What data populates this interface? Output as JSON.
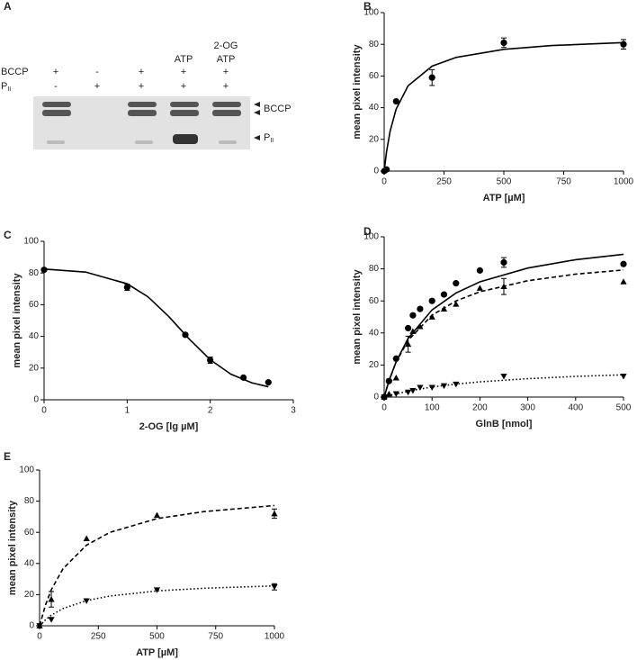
{
  "gel": {
    "label": "A",
    "header_lines": [
      [
        "ATP"
      ],
      [
        "2-OG",
        "ATP"
      ]
    ],
    "rows": [
      {
        "name": "BCCP",
        "signs": [
          "+",
          "-",
          "+",
          "+",
          "+"
        ]
      },
      {
        "name": "P",
        "sub": "II",
        "signs": [
          "-",
          "+",
          "+",
          "+",
          "+"
        ]
      }
    ],
    "band_labels": [
      {
        "name": "BCCP"
      },
      {
        "name": "P",
        "sub": "II"
      }
    ]
  },
  "chart_data": [
    {
      "type": "scatter",
      "label": "B",
      "x_label": "ATP [µM]",
      "y_label": "mean pixel intensity",
      "xlim": [
        0,
        1000
      ],
      "xticks": [
        0,
        250,
        500,
        750,
        1000
      ],
      "ylim": [
        0,
        100
      ],
      "yticks": [
        0,
        20,
        40,
        60,
        80,
        100
      ],
      "series": [
        {
          "marker": "circle",
          "x": [
            0,
            10,
            50,
            200,
            500,
            1000
          ],
          "values": [
            0,
            1,
            44,
            59,
            81,
            80
          ],
          "errors": [
            null,
            null,
            null,
            5,
            3,
            3
          ]
        },
        {
          "line": "solid",
          "x": [
            0,
            10,
            25,
            50,
            100,
            200,
            300,
            500,
            700,
            1000
          ],
          "values": [
            0,
            12.3,
            25.3,
            39.1,
            53.8,
            66.2,
            71.7,
            76.8,
            79.2,
            81.1
          ]
        }
      ]
    },
    {
      "type": "scatter",
      "label": "C",
      "x_label": "2-OG [lg µM]",
      "y_label": "mean pixel intensity",
      "xlim": [
        0,
        3
      ],
      "xticks": [
        0,
        1,
        2,
        3
      ],
      "ylim": [
        0,
        100
      ],
      "yticks": [
        0,
        20,
        40,
        60,
        80,
        100
      ],
      "series": [
        {
          "marker": "circle",
          "x": [
            0,
            1,
            1.7,
            2,
            2.4,
            2.7
          ],
          "values": [
            82,
            71,
            41,
            25,
            14,
            11
          ],
          "errors": [
            null,
            2,
            null,
            2,
            null,
            null
          ]
        },
        {
          "line": "solid",
          "x": [
            0,
            0.5,
            1,
            1.25,
            1.5,
            1.75,
            2,
            2.25,
            2.5,
            2.7
          ],
          "values": [
            82.5,
            80.6,
            73.2,
            65,
            52.6,
            38.2,
            25.3,
            16.1,
            10.7,
            8.2
          ]
        }
      ]
    },
    {
      "type": "scatter",
      "label": "D",
      "x_label": "GlnB [nmol]",
      "y_label": "mean pixel intensity",
      "xlim": [
        0,
        500
      ],
      "xticks": [
        0,
        100,
        200,
        300,
        400,
        500
      ],
      "ylim": [
        0,
        100
      ],
      "yticks": [
        0,
        20,
        40,
        60,
        80,
        100
      ],
      "series": [
        {
          "marker": "circle",
          "x": [
            0,
            10,
            25,
            50,
            60,
            75,
            100,
            125,
            150,
            200,
            250,
            500
          ],
          "values": [
            0,
            10,
            24,
            43,
            51,
            55,
            60,
            64,
            71,
            79,
            84,
            83
          ],
          "errors": [
            null,
            null,
            null,
            null,
            null,
            null,
            null,
            null,
            null,
            null,
            3,
            null
          ]
        },
        {
          "marker": "triangle-up",
          "x": [
            0,
            10,
            25,
            50,
            60,
            75,
            100,
            125,
            150,
            200,
            250,
            500
          ],
          "values": [
            0,
            2,
            12,
            33,
            41,
            44,
            50,
            55,
            58,
            68,
            69,
            72
          ],
          "errors": [
            null,
            null,
            null,
            5,
            null,
            null,
            null,
            null,
            null,
            null,
            5,
            null
          ]
        },
        {
          "marker": "triangle-down",
          "x": [
            0,
            25,
            50,
            60,
            75,
            100,
            125,
            150,
            250,
            500
          ],
          "values": [
            0,
            2,
            3,
            4,
            6,
            6,
            7,
            8,
            13,
            13
          ],
          "errors": [
            null,
            null,
            null,
            null,
            null,
            null,
            null,
            null,
            null,
            null
          ]
        },
        {
          "line": "solid",
          "x": [
            0,
            10,
            25,
            50,
            100,
            150,
            200,
            300,
            400,
            500
          ],
          "values": [
            0,
            10.1,
            22.1,
            36.6,
            54.4,
            64.9,
            71.9,
            80.5,
            85.7,
            89.1
          ]
        },
        {
          "line": "dashed",
          "x": [
            0,
            10,
            25,
            50,
            100,
            150,
            200,
            300,
            400,
            500
          ],
          "values": [
            0,
            10.2,
            21.9,
            35.4,
            51.1,
            60,
            65.7,
            72.6,
            76.7,
            79.3
          ]
        },
        {
          "line": "dotted",
          "x": [
            0,
            10,
            25,
            50,
            100,
            150,
            200,
            300,
            400,
            500
          ],
          "values": [
            0,
            0.9,
            2,
            3.7,
            6.3,
            8.1,
            9.5,
            11.5,
            12.9,
            13.9
          ]
        }
      ]
    },
    {
      "type": "scatter",
      "label": "E",
      "x_label": "ATP [µM]",
      "y_label": "mean pixel intensity",
      "xlim": [
        0,
        1000
      ],
      "xticks": [
        0,
        250,
        500,
        750,
        1000
      ],
      "ylim": [
        0,
        100
      ],
      "yticks": [
        0,
        20,
        40,
        60,
        80,
        100
      ],
      "series": [
        {
          "marker": "triangle-up",
          "x": [
            0,
            50,
            200,
            500,
            1000
          ],
          "values": [
            0,
            17,
            56,
            71,
            72
          ],
          "errors": [
            null,
            5,
            null,
            null,
            3
          ]
        },
        {
          "marker": "triangle-down",
          "x": [
            0,
            50,
            200,
            500,
            1000
          ],
          "values": [
            0,
            4,
            16,
            23,
            25
          ],
          "errors": [
            null,
            null,
            null,
            null,
            2
          ]
        },
        {
          "line": "dashed",
          "x": [
            0,
            25,
            50,
            100,
            200,
            300,
            500,
            700,
            1000
          ],
          "values": [
            0,
            13.3,
            23.2,
            36.7,
            51.8,
            60,
            68.8,
            73.3,
            77.2
          ]
        },
        {
          "line": "dotted",
          "x": [
            0,
            25,
            50,
            100,
            200,
            300,
            500,
            700,
            1000
          ],
          "values": [
            0,
            3.8,
            6.8,
            11.1,
            16.2,
            19.1,
            22.4,
            24.1,
            25.6
          ]
        }
      ]
    }
  ]
}
